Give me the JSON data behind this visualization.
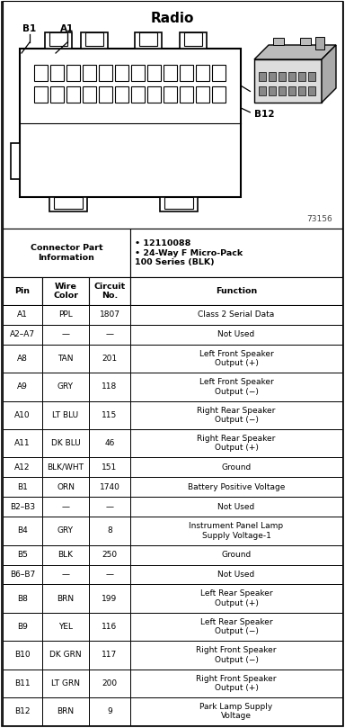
{
  "title": "Radio",
  "connector_info_label": "Connector Part\nInformation",
  "connector_info_bullets": [
    "12110088",
    "24-Way F Micro-Pack\n100 Series (BLK)"
  ],
  "col_headers": [
    "Pin",
    "Wire\nColor",
    "Circuit\nNo.",
    "Function"
  ],
  "rows": [
    [
      "A1",
      "PPL",
      "1807",
      "Class 2 Serial Data"
    ],
    [
      "A2–A7",
      "—",
      "—",
      "Not Used"
    ],
    [
      "A8",
      "TAN",
      "201",
      "Left Front Speaker\nOutput (+)"
    ],
    [
      "A9",
      "GRY",
      "118",
      "Left Front Speaker\nOutput (−)"
    ],
    [
      "A10",
      "LT BLU",
      "115",
      "Right Rear Speaker\nOutput (−)"
    ],
    [
      "A11",
      "DK BLU",
      "46",
      "Right Rear Speaker\nOutput (+)"
    ],
    [
      "A12",
      "BLK/WHT",
      "151",
      "Ground"
    ],
    [
      "B1",
      "ORN",
      "1740",
      "Battery Positive Voltage"
    ],
    [
      "B2–B3",
      "—",
      "—",
      "Not Used"
    ],
    [
      "B4",
      "GRY",
      "8",
      "Instrument Panel Lamp\nSupply Voltage-1"
    ],
    [
      "B5",
      "BLK",
      "250",
      "Ground"
    ],
    [
      "B6–B7",
      "—",
      "—",
      "Not Used"
    ],
    [
      "B8",
      "BRN",
      "199",
      "Left Rear Speaker\nOutput (+)"
    ],
    [
      "B9",
      "YEL",
      "116",
      "Left Rear Speaker\nOutput (−)"
    ],
    [
      "B10",
      "DK GRN",
      "117",
      "Right Front Speaker\nOutput (−)"
    ],
    [
      "B11",
      "LT GRN",
      "200",
      "Right Front Speaker\nOutput (+)"
    ],
    [
      "B12",
      "BRN",
      "9",
      "Park Lamp Supply\nVoltage"
    ]
  ],
  "fig_width": 3.84,
  "fig_height": 8.09,
  "dpi": 100,
  "bg_color": "#ffffff",
  "title_fontsize": 11,
  "header_fontsize": 6.8,
  "cell_fontsize": 6.5,
  "diagram_code": "73156"
}
